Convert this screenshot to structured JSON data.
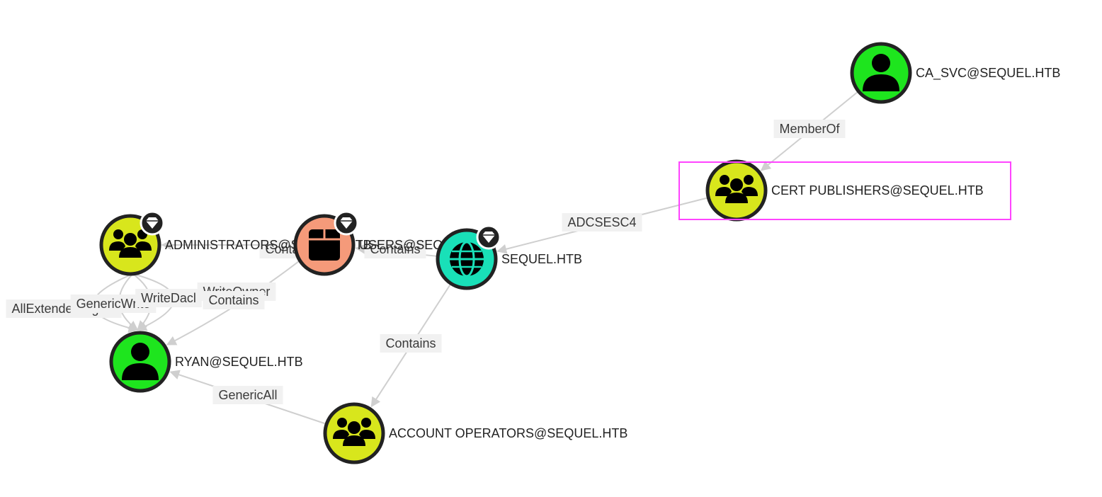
{
  "colors": {
    "user": "#1ee51e",
    "group": "#d8e61c",
    "domain": "#19e0b8",
    "container": "#f59a7a",
    "edge": "#cfcfcf",
    "selection": "#ff44ff"
  },
  "nodes": [
    {
      "id": "ca_svc",
      "label": "CA_SVC@SEQUEL.HTB",
      "kind": "user",
      "icon": "user-icon",
      "tier_zero": false,
      "selected": false
    },
    {
      "id": "cert_publishers",
      "label": "CERT PUBLISHERS@SEQUEL.HTB",
      "kind": "group",
      "icon": "group-icon",
      "tier_zero": false,
      "selected": true
    },
    {
      "id": "administrators",
      "label": "ADMINISTRATORS@SEQUEL.HTB",
      "kind": "group",
      "icon": "group-icon",
      "tier_zero": true,
      "selected": false
    },
    {
      "id": "users_container",
      "label": "USERS@SEQUEL.HTB",
      "kind": "container",
      "icon": "container-icon",
      "tier_zero": true,
      "selected": false
    },
    {
      "id": "sequel_htb",
      "label": "SEQUEL.HTB",
      "kind": "domain",
      "icon": "globe-icon",
      "tier_zero": true,
      "selected": false
    },
    {
      "id": "ryan",
      "label": "RYAN@SEQUEL.HTB",
      "kind": "user",
      "icon": "user-icon",
      "tier_zero": false,
      "selected": false
    },
    {
      "id": "account_operators",
      "label": "ACCOUNT OPERATORS@SEQUEL.HTB",
      "kind": "group",
      "icon": "group-icon",
      "tier_zero": false,
      "selected": false
    }
  ],
  "edges": [
    {
      "from": "ca_svc",
      "to": "cert_publishers",
      "label": "MemberOf"
    },
    {
      "from": "cert_publishers",
      "to": "sequel_htb",
      "label": "ADCSESC4"
    },
    {
      "from": "sequel_htb",
      "to": "users_container",
      "label": "Contains"
    },
    {
      "from": "users_container",
      "to": "administrators",
      "label": "Contains"
    },
    {
      "from": "sequel_htb",
      "to": "account_operators",
      "label": "Contains"
    },
    {
      "from": "account_operators",
      "to": "ryan",
      "label": "GenericAll"
    },
    {
      "from": "administrators",
      "to": "ryan",
      "label": "AllExtendedRights"
    },
    {
      "from": "administrators",
      "to": "ryan",
      "label": "GenericWrite"
    },
    {
      "from": "administrators",
      "to": "ryan",
      "label": "WriteDacl"
    },
    {
      "from": "administrators",
      "to": "ryan",
      "label": "WriteOwner"
    },
    {
      "from": "users_container",
      "to": "ryan",
      "label": "Contains"
    }
  ]
}
